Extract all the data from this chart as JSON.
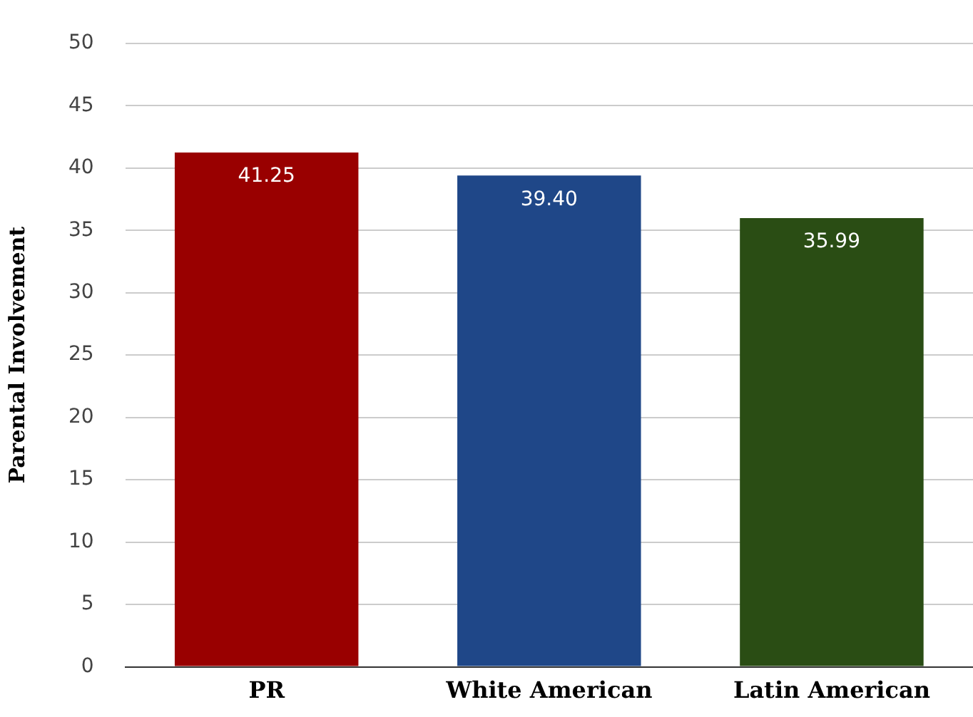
{
  "chart_data": {
    "type": "bar",
    "ylabel": "Parental Involvement",
    "categories": [
      "PR",
      "White American",
      "Latin American"
    ],
    "values": [
      41.25,
      39.4,
      35.99
    ],
    "value_labels": [
      "41.25",
      "39.40",
      "35.99"
    ],
    "colors": [
      "#990000",
      "#1f4788",
      "#2a4d14"
    ],
    "ylim": [
      0,
      50
    ],
    "yticks": [
      0,
      5,
      10,
      15,
      20,
      25,
      30,
      35,
      40,
      45,
      50
    ],
    "grid": "y",
    "legend": false
  }
}
